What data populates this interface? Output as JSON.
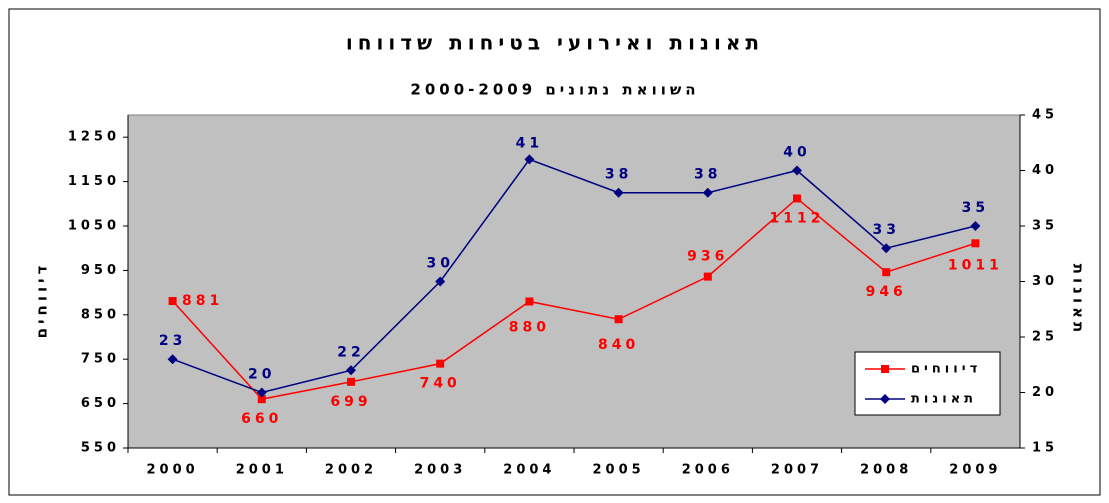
{
  "chart_data": {
    "type": "line",
    "title": "תאונות ואירועי בטיחות שדווחו",
    "subtitle": "השוואת נתונים 2000-2009",
    "ylabel": "דיווחים",
    "y2label": "תאונות",
    "categories": [
      "2000",
      "2001",
      "2002",
      "2003",
      "2004",
      "2005",
      "2006",
      "2007",
      "2008",
      "2009"
    ],
    "series": [
      {
        "name": "דיווחים",
        "color": "#ff0000",
        "marker": "square",
        "values": [
          881,
          660,
          699,
          740,
          880,
          840,
          936,
          1112,
          946,
          1011
        ]
      },
      {
        "name": "תאונות",
        "color": "#000080",
        "marker": "diamond",
        "axis": "y2",
        "values": [
          23,
          20,
          22,
          30,
          41,
          38,
          38,
          40,
          33,
          35
        ]
      }
    ],
    "ylim": [
      550,
      1300
    ],
    "yticks": [
      550,
      650,
      750,
      850,
      950,
      1050,
      1150,
      1250
    ],
    "y2lim": [
      15,
      45
    ],
    "y2ticks": [
      15,
      20,
      25,
      30,
      35,
      40,
      45
    ],
    "legend": "lower right"
  }
}
